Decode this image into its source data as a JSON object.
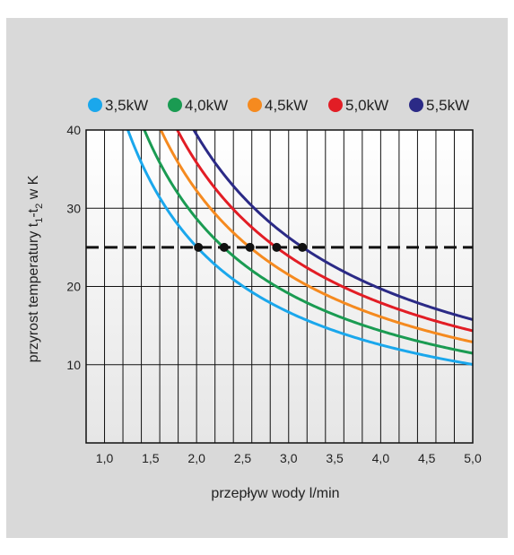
{
  "chart_data": {
    "type": "line",
    "title": "",
    "xlabel": "przepływ wody l/min",
    "ylabel": "przyrost temperatury t1-t2 w K",
    "ylabel_parts": {
      "prefix": "przyrost temperatury t",
      "sub1": "1",
      "mid": "-t",
      "sub2": "2",
      "suffix": " w K"
    },
    "xlim": [
      0.8,
      5.0
    ],
    "ylim": [
      0,
      40
    ],
    "x_ticks": [
      1.0,
      1.5,
      2.0,
      2.5,
      3.0,
      3.5,
      4.0,
      4.5,
      5.0
    ],
    "x_tick_labels": [
      "1,0",
      "1,5",
      "2,0",
      "2,5",
      "3,0",
      "3,5",
      "4,0",
      "4,5",
      "5,0"
    ],
    "y_ticks": [
      10,
      20,
      30,
      40
    ],
    "y_tick_labels": [
      "10",
      "20",
      "30",
      "40"
    ],
    "grid": true,
    "legend_position": "top",
    "reference_line": {
      "y": 25,
      "style": "dashed",
      "color": "#111111"
    },
    "series": [
      {
        "name": "3,5kW",
        "power_kw": 3.5,
        "color": "#1aa7ec",
        "marker_x": 2.02
      },
      {
        "name": "4,0kW",
        "power_kw": 4.0,
        "color": "#1a9b52",
        "marker_x": 2.3
      },
      {
        "name": "4,5kW",
        "power_kw": 4.5,
        "color": "#f58a1f",
        "marker_x": 2.58
      },
      {
        "name": "5,0kW",
        "power_kw": 5.0,
        "color": "#e21d25",
        "marker_x": 2.87
      },
      {
        "name": "5,5kW",
        "power_kw": 5.5,
        "color": "#2b2a86",
        "marker_x": 3.15
      }
    ],
    "curve_formula": "delta_T = power_kw * 14.33 / flow_l_per_min"
  },
  "style": {
    "panel_background": "#d9d9d9",
    "plot_gradient_top": "#ffffff",
    "plot_gradient_bottom": "#e6e6e6",
    "grid_color": "#111111",
    "marker_color": "#111111"
  }
}
